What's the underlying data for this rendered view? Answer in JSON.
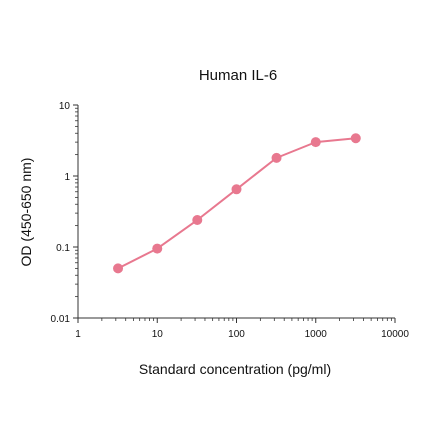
{
  "chart_data": {
    "type": "line",
    "title": "Human IL-6",
    "xlabel": "Standard concentration (pg/ml)",
    "ylabel": "OD (450-650 nm)",
    "x_scale": "log",
    "y_scale": "log",
    "xlim": [
      1,
      10000
    ],
    "ylim": [
      0.01,
      10
    ],
    "x_ticks": [
      1,
      10,
      100,
      1000,
      10000
    ],
    "x_tick_labels": [
      "1",
      "10",
      "100",
      "1000",
      "10000"
    ],
    "y_ticks": [
      0.01,
      0.1,
      1,
      10
    ],
    "y_tick_labels": [
      "0.01",
      "0.1",
      "1",
      "10"
    ],
    "grid": false,
    "legend": "none",
    "series": [
      {
        "color": "#e8788f",
        "x": [
          3.2,
          10,
          32,
          100,
          320,
          1000,
          3200
        ],
        "y": [
          0.05,
          0.095,
          0.24,
          0.65,
          1.8,
          3.0,
          3.4
        ]
      }
    ]
  }
}
